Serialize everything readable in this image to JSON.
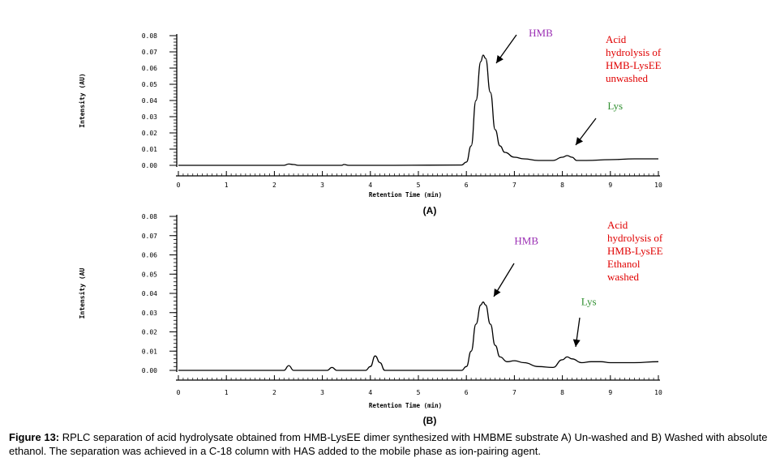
{
  "chart_data": [
    {
      "type": "line",
      "panel_label": "(A)",
      "xlabel": "Retention Time (min)",
      "ylabel": "Intensity (AU)",
      "xlim": [
        0,
        10
      ],
      "ylim": [
        0,
        0.08
      ],
      "x_ticks": [
        "0",
        "1",
        "2",
        "3",
        "4",
        "5",
        "6",
        "7",
        "8",
        "9",
        "10"
      ],
      "y_ticks": [
        "0.00",
        "0.01",
        "0.02",
        "0.03",
        "0.04",
        "0.05",
        "0.06",
        "0.07",
        "0.08"
      ],
      "series": [
        {
          "color": "#000000",
          "x": [
            0,
            2.2,
            2.3,
            2.4,
            2.5,
            3.4,
            3.45,
            3.55,
            4.5,
            5.9,
            6.0,
            6.1,
            6.2,
            6.3,
            6.35,
            6.4,
            6.5,
            6.6,
            6.7,
            6.8,
            7.0,
            7.2,
            7.5,
            7.8,
            8.0,
            8.1,
            8.2,
            8.3,
            8.5,
            9.0,
            9.5,
            10
          ],
          "y": [
            0.0,
            0.0,
            0.0008,
            0.0005,
            0.0,
            0.0,
            0.0005,
            0.0,
            0.0,
            0.0002,
            0.002,
            0.012,
            0.04,
            0.064,
            0.068,
            0.066,
            0.045,
            0.022,
            0.012,
            0.008,
            0.005,
            0.004,
            0.003,
            0.003,
            0.005,
            0.006,
            0.005,
            0.003,
            0.003,
            0.0035,
            0.004,
            0.004
          ]
        }
      ],
      "annotations": [
        {
          "text": "HMB",
          "color": "#9b30b4",
          "x": 7.55,
          "y": 0.0795
        },
        {
          "text": "Lys",
          "color": "#2f8f2f",
          "x": 9.1,
          "y": 0.0345
        }
      ],
      "legend_lines": [
        "Acid",
        "hydrolysis of",
        "HMB-LysEE",
        "unwashed"
      ],
      "legend_color": "#e00000"
    },
    {
      "type": "line",
      "panel_label": "(B)",
      "xlabel": "Retention Time (min)",
      "ylabel": "Intensity (AU",
      "xlim": [
        0,
        10
      ],
      "ylim": [
        0,
        0.08
      ],
      "x_ticks": [
        "0",
        "1",
        "2",
        "3",
        "4",
        "5",
        "6",
        "7",
        "8",
        "9",
        "10"
      ],
      "y_ticks": [
        "0.00",
        "0.01",
        "0.02",
        "0.03",
        "0.04",
        "0.05",
        "0.06",
        "0.07",
        "0.08"
      ],
      "series": [
        {
          "color": "#000000",
          "x": [
            0,
            2.2,
            2.3,
            2.4,
            3.1,
            3.2,
            3.3,
            3.9,
            4.0,
            4.1,
            4.2,
            4.3,
            5.9,
            6.0,
            6.1,
            6.2,
            6.3,
            6.35,
            6.4,
            6.5,
            6.6,
            6.7,
            6.85,
            7.0,
            7.2,
            7.5,
            7.8,
            8.0,
            8.1,
            8.2,
            8.4,
            8.6,
            8.8,
            9.0,
            9.5,
            10
          ],
          "y": [
            0.0,
            0.0,
            0.0025,
            0.0,
            0.0,
            0.0015,
            0.0,
            0.0,
            0.002,
            0.0075,
            0.004,
            0.0,
            0.0,
            0.002,
            0.01,
            0.024,
            0.034,
            0.0355,
            0.034,
            0.024,
            0.013,
            0.007,
            0.0045,
            0.005,
            0.004,
            0.002,
            0.0015,
            0.0055,
            0.007,
            0.006,
            0.004,
            0.0045,
            0.0045,
            0.004,
            0.004,
            0.0045
          ]
        }
      ],
      "annotations": [
        {
          "text": "HMB",
          "color": "#9b30b4",
          "x": 7.25,
          "y": 0.0655
        },
        {
          "text": "Lys",
          "color": "#2f8f2f",
          "x": 8.55,
          "y": 0.034
        }
      ],
      "legend_lines": [
        "Acid",
        "hydrolysis of",
        "HMB-LysEE",
        "Ethanol",
        "washed"
      ],
      "legend_color": "#e00000"
    }
  ],
  "caption": {
    "label": "Figure 13:",
    "text": " RPLC separation of acid hydrolysate obtained from HMB-LysEE dimer synthesized with HMBME substrate A) Un-washed and B) Washed with absolute ethanol. The separation was achieved in a C-18 column with HAS added to the mobile phase as ion-pairing agent."
  }
}
